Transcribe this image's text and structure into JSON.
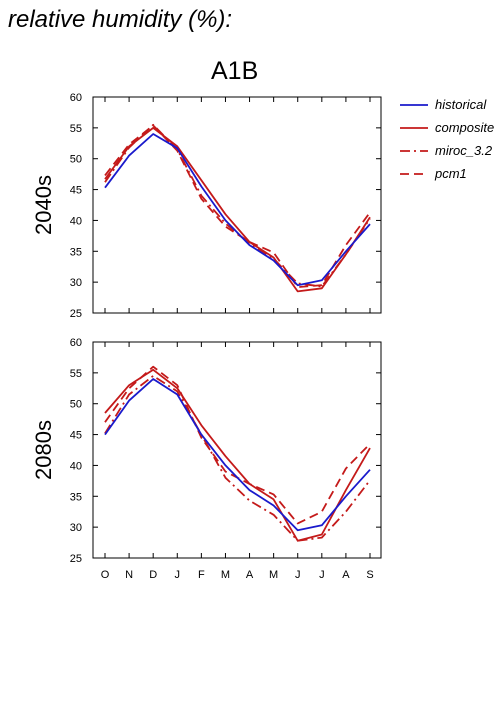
{
  "page": {
    "title": "relative humidity (%):",
    "scenario": "A1B"
  },
  "chart_data": {
    "type": "line",
    "categories": [
      "O",
      "N",
      "D",
      "J",
      "F",
      "M",
      "A",
      "M",
      "J",
      "J",
      "A",
      "S"
    ],
    "y_ticks": [
      25,
      30,
      35,
      40,
      45,
      50,
      55,
      60
    ],
    "ylim": [
      25,
      60
    ],
    "grid": false,
    "legend_position": "right",
    "legend": [
      {
        "name": "historical",
        "color": "#1a1acc",
        "style": "solid"
      },
      {
        "name": "composite",
        "color": "#c41a1a",
        "style": "solid"
      },
      {
        "name": "miroc_3.2",
        "color": "#c41a1a",
        "style": "dashdot"
      },
      {
        "name": "pcm1",
        "color": "#c41a1a",
        "style": "dashed"
      }
    ],
    "panels": [
      {
        "label": "2040s",
        "series": [
          {
            "name": "historical",
            "values": [
              45.3,
              50.5,
              54.0,
              51.7,
              45.5,
              40.0,
              36.0,
              33.5,
              29.5,
              30.3,
              35.0,
              39.4
            ]
          },
          {
            "name": "composite",
            "values": [
              46.7,
              52.0,
              55.0,
              52.0,
              46.5,
              41.0,
              36.5,
              34.0,
              28.5,
              29.0,
              34.5,
              40.5
            ]
          },
          {
            "name": "miroc_3.2",
            "values": [
              46.2,
              51.8,
              55.5,
              51.5,
              44.0,
              39.5,
              36.3,
              33.8,
              29.8,
              29.3,
              34.5,
              40.3
            ]
          },
          {
            "name": "pcm1",
            "values": [
              47.3,
              52.3,
              55.4,
              51.3,
              43.5,
              39.0,
              36.5,
              34.8,
              29.2,
              29.5,
              36.0,
              41.3
            ]
          }
        ]
      },
      {
        "label": "2080s",
        "series": [
          {
            "name": "historical",
            "values": [
              45.0,
              50.5,
              54.0,
              51.5,
              45.0,
              40.0,
              36.0,
              33.5,
              29.5,
              30.3,
              35.0,
              39.3
            ]
          },
          {
            "name": "composite",
            "values": [
              48.5,
              53.0,
              55.5,
              52.5,
              46.5,
              41.5,
              37.0,
              34.5,
              27.8,
              28.8,
              36.0,
              42.8
            ]
          },
          {
            "name": "miroc_3.2",
            "values": [
              45.2,
              51.5,
              54.5,
              52.0,
              45.0,
              38.0,
              34.3,
              32.0,
              27.8,
              28.3,
              32.5,
              37.6
            ]
          },
          {
            "name": "pcm1",
            "values": [
              47.0,
              52.5,
              56.0,
              53.0,
              44.5,
              39.0,
              37.0,
              35.3,
              30.6,
              32.5,
              39.5,
              43.5
            ]
          }
        ]
      }
    ]
  }
}
